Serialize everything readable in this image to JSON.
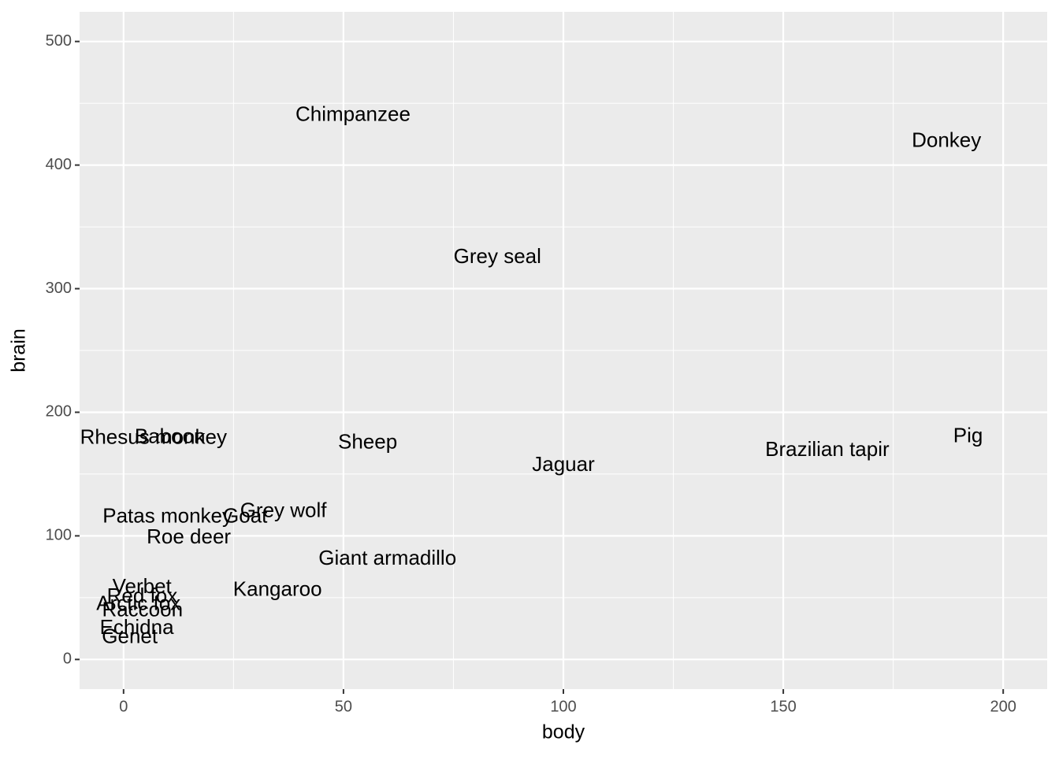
{
  "chart_data": {
    "type": "scatter",
    "mark": "label",
    "x_label": "body",
    "y_label": "brain",
    "labels": [
      "Chimpanzee",
      "Donkey",
      "Grey seal",
      "Rhesus monkey",
      "Baboon",
      "Sheep",
      "Jaguar",
      "Brazilian tapir",
      "Pig",
      "Patas monkey",
      "Goat",
      "Grey wolf",
      "Roe deer",
      "Giant armadillo",
      "Kangaroo",
      "Verbet",
      "Red fox",
      "Arctic fox",
      "Raccoon",
      "Echidna",
      "Genet"
    ],
    "x": [
      52.16,
      187.1,
      85,
      6.8,
      10.55,
      55.5,
      100,
      160,
      192,
      10,
      27.66,
      36.33,
      14.83,
      60,
      35,
      4.19,
      4.235,
      3.385,
      4.288,
      3,
      1.41
    ],
    "values": [
      440,
      419,
      325,
      179,
      179.5,
      175,
      157,
      169,
      180,
      115,
      115,
      119.5,
      98.2,
      81,
      56,
      58,
      50.4,
      44.5,
      39.2,
      25,
      17.5
    ],
    "color": "#000000",
    "xlim": [
      -10,
      210
    ],
    "ylim": [
      -24,
      524
    ],
    "xticks": [
      0,
      50,
      100,
      150,
      200
    ],
    "yticks": [
      0,
      100,
      200,
      300,
      400,
      500
    ],
    "grid": true,
    "minor_grid": true
  }
}
